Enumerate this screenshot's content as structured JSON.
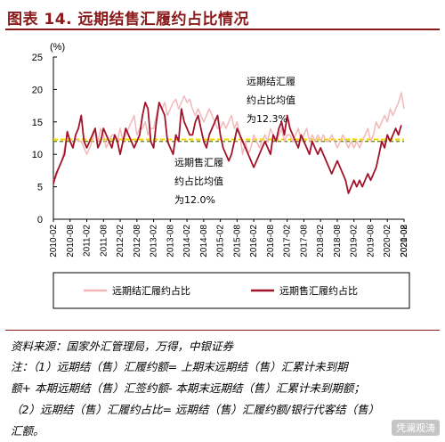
{
  "title": "图表 14. 远期结售汇履约占比情况",
  "chart_data": {
    "type": "line",
    "unit_label": "(%)",
    "ylim": [
      0,
      25
    ],
    "yticks": [
      0,
      5,
      10,
      15,
      20,
      25
    ],
    "x_start": "2010-02",
    "x_tick_labels": [
      "2010-02",
      "2010-08",
      "2011-02",
      "2011-08",
      "2012-02",
      "2012-08",
      "2013-02",
      "2013-08",
      "2014-02",
      "2014-08",
      "2015-02",
      "2015-08",
      "2016-02",
      "2016-08",
      "2017-02",
      "2017-08",
      "2018-02",
      "2018-08",
      "2019-02",
      "2019-08",
      "2020-02",
      "2020-08",
      "2021-02"
    ],
    "grid": false,
    "legend_position": "bottom",
    "series": [
      {
        "name": "远期结汇履约占比",
        "color": "#f4b8b8",
        "average": 12.3,
        "values": [
          6,
          6.5,
          8,
          9,
          11,
          13,
          12,
          11,
          12.5,
          12,
          12,
          11,
          10,
          11,
          12,
          14,
          12,
          14,
          13,
          11,
          12,
          13,
          13,
          12,
          14,
          12,
          13,
          14,
          15,
          16,
          13,
          14,
          14,
          15,
          13,
          14,
          14,
          16,
          18,
          17,
          18,
          16,
          17,
          18,
          18.5,
          17,
          18,
          19,
          18,
          18.5,
          17,
          16,
          17,
          16,
          15,
          16,
          17,
          16,
          15,
          14,
          14,
          15,
          14,
          15,
          16,
          14,
          15,
          13,
          10,
          12,
          10,
          11,
          13,
          12,
          11,
          12,
          13,
          12,
          14,
          13,
          12,
          13,
          14,
          12,
          13,
          13,
          12,
          13,
          14,
          12,
          13,
          14,
          12,
          13,
          12,
          13,
          12,
          13,
          12,
          12,
          13,
          12,
          11,
          12,
          13,
          12,
          11,
          12,
          11,
          12,
          11,
          12,
          13,
          14,
          12,
          13,
          15,
          14,
          15,
          16,
          15,
          17,
          16,
          17,
          18,
          19.5,
          17
        ]
      },
      {
        "name": "远期售汇履约占比",
        "color": "#a1122b",
        "average": 12.0,
        "values": [
          5.5,
          7,
          8,
          9,
          10,
          13.5,
          12,
          11,
          13,
          14,
          16,
          12,
          11,
          12,
          13,
          14,
          11,
          12,
          14,
          13,
          12,
          11,
          13,
          12,
          10,
          12,
          14,
          13,
          12,
          11,
          12,
          13,
          16,
          18,
          17,
          12,
          11,
          15,
          18,
          17,
          16,
          12,
          11,
          10,
          13,
          12,
          17,
          15,
          14,
          13,
          13,
          15,
          16,
          14,
          12,
          11,
          13,
          14,
          15,
          16,
          13,
          11,
          10,
          9,
          10,
          12,
          14,
          13,
          12,
          11,
          10,
          9,
          8,
          9,
          10,
          11,
          12,
          11,
          10,
          13,
          12,
          14,
          15,
          13,
          16,
          14,
          13,
          12,
          11,
          13,
          12,
          11,
          10,
          12,
          11,
          10,
          11,
          10,
          9,
          8,
          7,
          8,
          9,
          8,
          7,
          6,
          4,
          5,
          6,
          5,
          6,
          5,
          6,
          7,
          6,
          7,
          8,
          10,
          12,
          11,
          13,
          12,
          13,
          14,
          13,
          14.5
        ]
      }
    ],
    "annotations": [
      {
        "lines": [
          "远期结汇履",
          "约占比均值",
          "为12.3%"
        ]
      },
      {
        "lines": [
          "远期售汇履",
          "约占比均值",
          "为12.0%"
        ]
      }
    ]
  },
  "source_text": "资料来源：国家外汇管理局，万得，中银证券",
  "notes": [
    "注：（1）远期结（售）汇履约额= 上期末远期结（售）汇累计未到期",
    "额+ 本期远期结（售）汇签约额- 本期末远期结（售）汇累计未到期额；",
    "（2）远期结（售）汇履约占比= 远期结（售）汇履约额/银行代客结（售）",
    "汇额。"
  ],
  "watermark": "凭澜观涛"
}
